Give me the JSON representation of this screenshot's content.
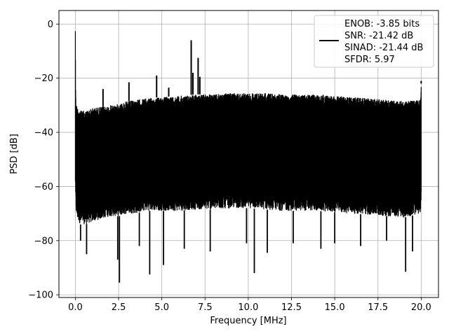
{
  "chart_data": {
    "type": "line",
    "title": "",
    "xlabel": "Frequency [MHz]",
    "ylabel": "PSD [dB]",
    "xlim": [
      -0.95,
      21.0
    ],
    "ylim": [
      -101,
      5
    ],
    "grid": true,
    "x_ticks": [
      0.0,
      2.5,
      5.0,
      7.5,
      10.0,
      12.5,
      15.0,
      17.5,
      20.0
    ],
    "x_tick_labels": [
      "0.0",
      "2.5",
      "5.0",
      "7.5",
      "10.0",
      "12.5",
      "15.0",
      "17.5",
      "20.0"
    ],
    "y_ticks": [
      0,
      -20,
      -40,
      -60,
      -80,
      -100
    ],
    "y_tick_labels": [
      "0",
      "−20",
      "−40",
      "−60",
      "−80",
      "−100"
    ],
    "legend": {
      "placement": "top-right",
      "entries": [
        "ENOB: -3.85 bits",
        "SNR: -21.42 dB",
        "SINAD: -21.44 dB",
        "SFDR: 5.97"
      ]
    },
    "series": [
      {
        "color": "#000000",
        "envelope": {
          "x": [
            0.0,
            0.02,
            0.05,
            0.1,
            0.3,
            0.6,
            1.0,
            1.5,
            2.0,
            2.5,
            3.0,
            3.5,
            4.0,
            5.0,
            6.0,
            7.0,
            8.0,
            9.0,
            10.0,
            11.0,
            12.0,
            13.0,
            14.0,
            15.0,
            16.0,
            17.0,
            18.0,
            19.0,
            19.95,
            20.0
          ],
          "upper": [
            0.0,
            -26.0,
            -29.0,
            -30.5,
            -32.0,
            -32.0,
            -31.0,
            -30.5,
            -30.0,
            -29.5,
            -28.5,
            -28.0,
            -27.5,
            -27.0,
            -26.5,
            -26.0,
            -26.0,
            -25.5,
            -25.5,
            -25.5,
            -26.0,
            -26.0,
            -26.0,
            -26.5,
            -27.0,
            -27.5,
            -28.0,
            -28.5,
            -28.0,
            -22.0
          ],
          "lower": [
            -60.0,
            -67.0,
            -70.0,
            -72.0,
            -74.0,
            -74.0,
            -73.0,
            -72.0,
            -71.0,
            -71.0,
            -70.0,
            -70.0,
            -69.0,
            -69.0,
            -69.0,
            -68.5,
            -68.5,
            -68.0,
            -68.0,
            -68.5,
            -69.0,
            -69.0,
            -69.0,
            -69.5,
            -70.0,
            -70.5,
            -71.0,
            -71.5,
            -70.0,
            -65.0
          ]
        },
        "spurs": [
          {
            "x": 0.0,
            "y": 0.0
          },
          {
            "x": 1.6,
            "y": -24.0
          },
          {
            "x": 3.1,
            "y": -21.5
          },
          {
            "x": 4.7,
            "y": -19.0
          },
          {
            "x": 5.4,
            "y": -23.5
          },
          {
            "x": 6.7,
            "y": -6.0
          },
          {
            "x": 6.8,
            "y": -18.0
          },
          {
            "x": 7.1,
            "y": -12.5
          },
          {
            "x": 7.2,
            "y": -19.5
          },
          {
            "x": 20.0,
            "y": -21.0
          }
        ],
        "dips": [
          {
            "x": 0.3,
            "y": -80.0
          },
          {
            "x": 0.65,
            "y": -85.0
          },
          {
            "x": 2.55,
            "y": -95.5
          },
          {
            "x": 2.45,
            "y": -87.0
          },
          {
            "x": 3.7,
            "y": -82.0
          },
          {
            "x": 4.3,
            "y": -92.5
          },
          {
            "x": 5.1,
            "y": -89.0
          },
          {
            "x": 6.3,
            "y": -83.0
          },
          {
            "x": 7.8,
            "y": -84.0
          },
          {
            "x": 9.9,
            "y": -81.0
          },
          {
            "x": 10.35,
            "y": -92.0
          },
          {
            "x": 11.1,
            "y": -84.5
          },
          {
            "x": 12.6,
            "y": -81.0
          },
          {
            "x": 14.2,
            "y": -83.0
          },
          {
            "x": 15.0,
            "y": -81.0
          },
          {
            "x": 16.5,
            "y": -82.0
          },
          {
            "x": 18.0,
            "y": -80.0
          },
          {
            "x": 19.1,
            "y": -91.5
          },
          {
            "x": 19.5,
            "y": -84.0
          }
        ]
      }
    ]
  }
}
